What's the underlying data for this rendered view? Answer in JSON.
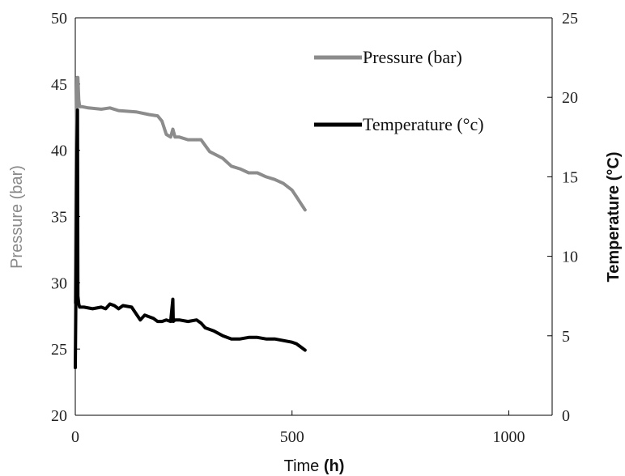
{
  "chart_data": {
    "type": "line",
    "xlabel": "Time",
    "xlabel_unit": "(h)",
    "ylabel_left": "Pressure (bar)",
    "ylabel_right": "Temperature (°C)",
    "xlim": [
      0,
      1100
    ],
    "ylim_left": [
      20,
      50
    ],
    "ylim_right": [
      0,
      25
    ],
    "x_ticks": [
      0,
      500,
      1000
    ],
    "y_ticks_left": [
      20,
      25,
      30,
      35,
      40,
      45,
      50
    ],
    "y_ticks_right": [
      0,
      5,
      10,
      15,
      20,
      25
    ],
    "grid": false,
    "legend_position": "top-right",
    "series": [
      {
        "name": "Pressure (bar)",
        "axis": "left",
        "color": "#8c8c8c",
        "x": [
          0,
          2,
          4,
          6,
          8,
          10,
          15,
          30,
          60,
          80,
          100,
          140,
          170,
          190,
          200,
          210,
          220,
          225,
          230,
          240,
          260,
          290,
          310,
          340,
          360,
          380,
          400,
          420,
          440,
          460,
          480,
          500,
          510,
          520,
          530
        ],
        "y": [
          28.5,
          40,
          45.5,
          45.5,
          43.8,
          43.3,
          43.3,
          43.2,
          43.1,
          43.2,
          43.0,
          42.9,
          42.7,
          42.6,
          42.2,
          41.2,
          41.0,
          41.6,
          41.0,
          41.0,
          40.8,
          40.8,
          39.9,
          39.4,
          38.8,
          38.6,
          38.3,
          38.3,
          38.0,
          37.8,
          37.5,
          37.0,
          36.5,
          36.0,
          35.5
        ]
      },
      {
        "name": "Temperature (°c)",
        "axis": "right",
        "color": "#000000",
        "x": [
          0,
          1,
          2,
          3,
          4,
          5,
          6,
          8,
          10,
          20,
          40,
          60,
          70,
          80,
          90,
          100,
          110,
          130,
          150,
          160,
          180,
          190,
          200,
          210,
          220,
          225,
          226,
          230,
          240,
          260,
          280,
          290,
          300,
          320,
          340,
          360,
          380,
          400,
          420,
          440,
          460,
          480,
          500,
          510,
          520,
          530
        ],
        "y": [
          3,
          6,
          10,
          14,
          17,
          19.2,
          7.5,
          7.0,
          6.8,
          6.8,
          6.7,
          6.8,
          6.7,
          7.0,
          6.9,
          6.7,
          6.9,
          6.8,
          6.0,
          6.3,
          6.1,
          5.9,
          5.9,
          6.0,
          5.9,
          7.3,
          5.9,
          6.0,
          6.0,
          5.9,
          6.0,
          5.8,
          5.5,
          5.3,
          5.0,
          4.8,
          4.8,
          4.9,
          4.9,
          4.8,
          4.8,
          4.7,
          4.6,
          4.5,
          4.3,
          4.1
        ]
      }
    ]
  }
}
